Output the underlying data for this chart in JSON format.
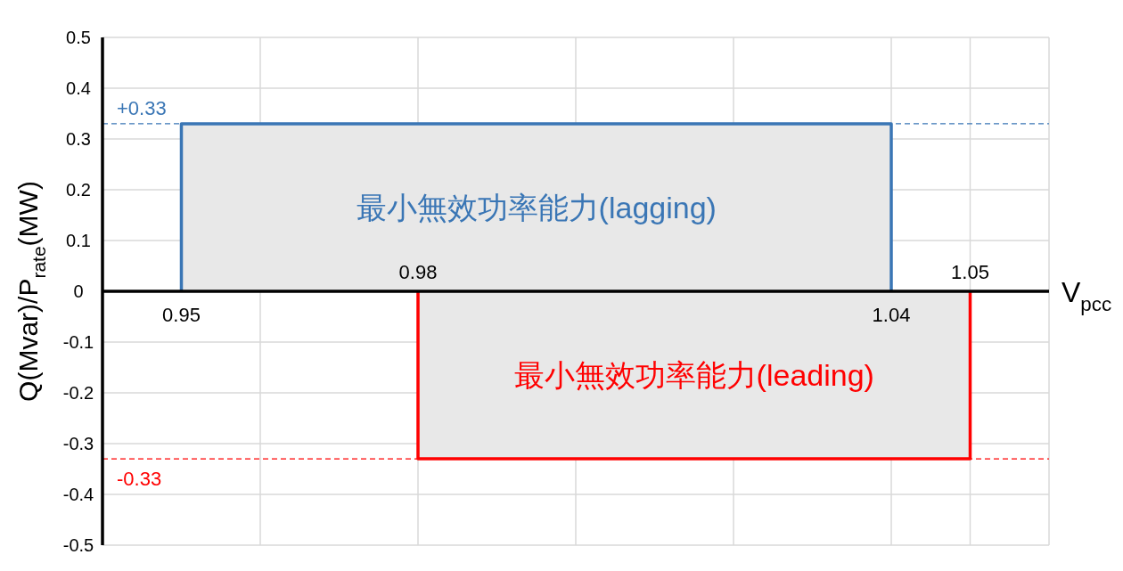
{
  "chart_data": {
    "type": "area",
    "xlabel": "V$_{pcc}$",
    "ylabel": "Q(Mvar)/P$_{rate}$(MW)",
    "xlim": [
      0.94,
      1.06
    ],
    "xticks": [
      {
        "value": 0.94,
        "label": null
      },
      {
        "value": 0.96,
        "label": null
      },
      0.98,
      {
        "value": 1.0,
        "label": null
      },
      {
        "value": 1.02,
        "label": null
      },
      {
        "value": 1.04,
        "label": null
      },
      1.05,
      {
        "value": 1.06,
        "label": null
      }
    ],
    "ylim": [
      -0.5,
      0.5
    ],
    "yticks": [
      0.5,
      0.4,
      0.3,
      0.2,
      0.1,
      0,
      -0.1,
      -0.2,
      -0.3,
      -0.4,
      -0.5
    ],
    "grid": true,
    "series": [
      {
        "name": "最小無效功率能力(lagging)",
        "color": "#3a76b5",
        "x": [
          0.95,
          0.95,
          1.04,
          1.04
        ],
        "values": [
          0,
          0.33,
          0.33,
          0
        ]
      },
      {
        "name": "最小無效功率能力(leading)",
        "color": "#ff0000",
        "x": [
          0.98,
          0.98,
          1.05,
          1.05
        ],
        "values": [
          0,
          -0.33,
          -0.33,
          0
        ]
      }
    ],
    "ref_lines": [
      {
        "axis": "y",
        "value": 0.33,
        "label": "+0.33",
        "color": "#3a76b5",
        "line_style": "dashed"
      },
      {
        "axis": "y",
        "value": -0.33,
        "label": "-0.33",
        "color": "#ff0000",
        "line_style": "dashed"
      }
    ],
    "annotations": [
      {
        "text": "0.95",
        "x": 0.95,
        "y": 0
      },
      {
        "text": "1.04",
        "x": 1.04,
        "y": 0
      }
    ]
  }
}
